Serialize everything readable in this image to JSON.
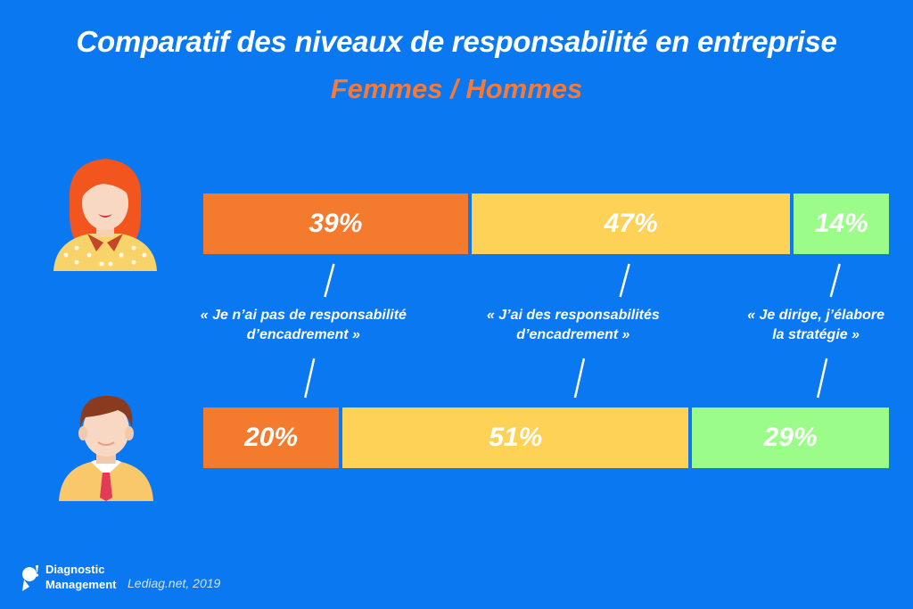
{
  "title": "Comparatif des niveaux de responsabilité en entreprise",
  "subtitle": "Femmes / Hommes",
  "chart_data": {
    "type": "bar",
    "stacked": true,
    "orientation": "horizontal",
    "unit": "%",
    "categories": [
      "« Je n’ai pas de responsabilité d’encadrement »",
      "« J’ai des responsabilités d’encadrement »",
      "« Je dirige, j’élabore la stratégie »"
    ],
    "category_lines": [
      [
        "« Je n’ai pas de responsabilité",
        "d’encadrement »"
      ],
      [
        "« J’ai des responsabilités",
        "d’encadrement »"
      ],
      [
        "« Je dirige, j’élabore",
        "la stratégie »"
      ]
    ],
    "category_colors": [
      "#f47a2e",
      "#fdd257",
      "#9cfc8a"
    ],
    "series": [
      {
        "values": [
          39,
          47,
          14
        ],
        "labels": [
          "39%",
          "47%",
          "14%"
        ],
        "avatar": "woman-avatar-icon"
      },
      {
        "values": [
          20,
          51,
          29
        ],
        "labels": [
          "20%",
          "51%",
          "29%"
        ],
        "avatar": "man-avatar-icon"
      }
    ],
    "xlim": [
      0,
      100
    ],
    "legend": "none",
    "grid": false
  },
  "footer": {
    "brand_line1": "Diagnostic",
    "brand_line2": "Management",
    "source": "Lediag.net, 2019",
    "logo_icon": "diag-logo-icon"
  }
}
